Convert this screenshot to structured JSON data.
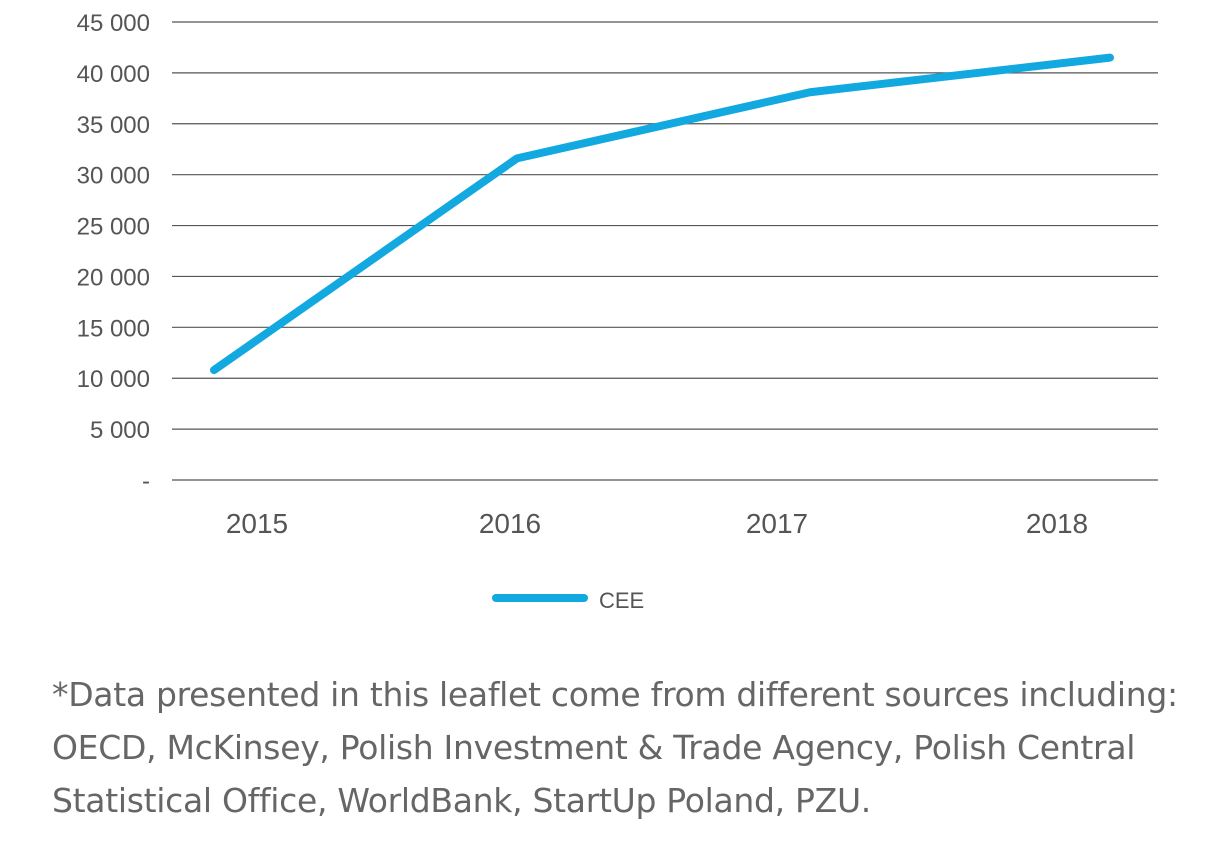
{
  "chart_data": {
    "type": "line",
    "title": "",
    "xlabel": "",
    "ylabel": "",
    "categories": [
      "2015",
      "2016",
      "2017",
      "2018"
    ],
    "series": [
      {
        "name": "CEE",
        "color": "#12a8e0",
        "values": [
          10800,
          31600,
          38100,
          41500
        ]
      }
    ],
    "ylim": [
      0,
      45000
    ],
    "y_ticks": [
      0,
      5000,
      10000,
      15000,
      20000,
      25000,
      30000,
      35000,
      40000,
      45000
    ],
    "y_tick_labels": [
      "-",
      "5 000",
      "10 000",
      "15 000",
      "20 000",
      "25 000",
      "30 000",
      "35 000",
      "40 000",
      "45 000"
    ],
    "grid": true,
    "legend_position": "bottom-center"
  },
  "footnote": "*Data presented in this leaflet come from different sources including: OECD, McKinsey, Polish Investment & Trade Agency, Polish Central Statistical Office, WorldBank, StartUp Poland, PZU."
}
